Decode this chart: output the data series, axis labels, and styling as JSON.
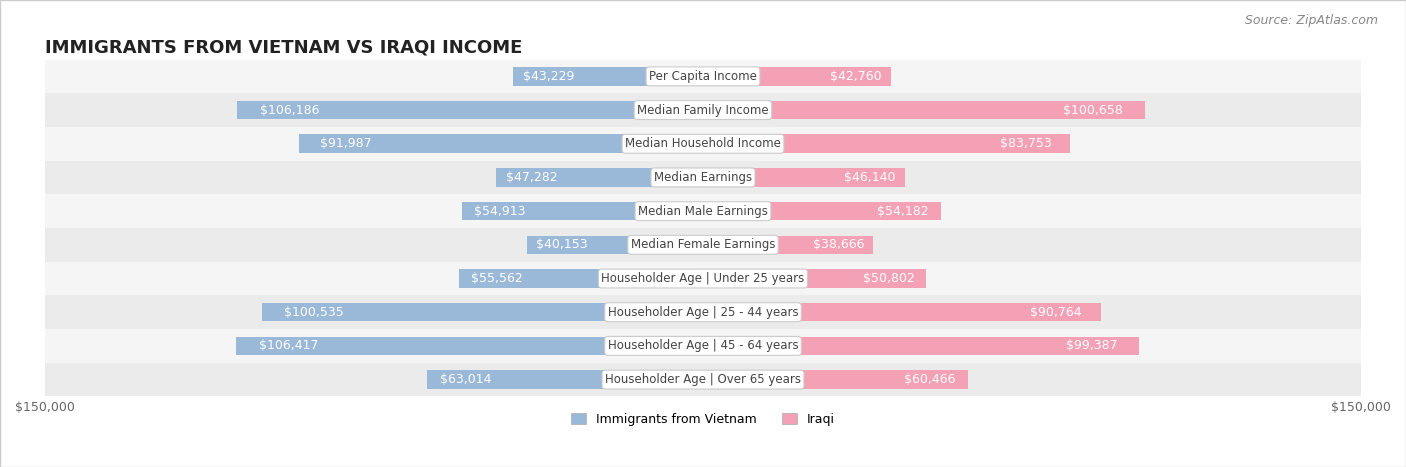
{
  "title": "IMMIGRANTS FROM VIETNAM VS IRAQI INCOME",
  "source": "Source: ZipAtlas.com",
  "categories": [
    "Per Capita Income",
    "Median Family Income",
    "Median Household Income",
    "Median Earnings",
    "Median Male Earnings",
    "Median Female Earnings",
    "Householder Age | Under 25 years",
    "Householder Age | 25 - 44 years",
    "Householder Age | 45 - 64 years",
    "Householder Age | Over 65 years"
  ],
  "vietnam_values": [
    43229,
    106186,
    91987,
    47282,
    54913,
    40153,
    55562,
    100535,
    106417,
    63014
  ],
  "iraqi_values": [
    42760,
    100658,
    83753,
    46140,
    54182,
    38666,
    50802,
    90764,
    99387,
    60466
  ],
  "max_value": 150000,
  "vietnam_color_bar": "#9ab8d8",
  "vietnam_color_bar_dark": "#6699cc",
  "iraqi_color_bar": "#f4a0b5",
  "iraqi_color_bar_dark": "#ee82a0",
  "label_box_color": "#ffffff",
  "label_box_edge": "#dddddd",
  "row_bg_light": "#f5f5f5",
  "row_bg_dark": "#ebebeb",
  "title_fontsize": 13,
  "source_fontsize": 9,
  "bar_label_fontsize": 9,
  "category_fontsize": 8.5,
  "axis_label_fontsize": 9,
  "legend_fontsize": 9,
  "bar_height": 0.55,
  "vietnam_label_color_inside": "#ffffff",
  "vietnam_label_color_outside": "#666666",
  "iraqi_label_color_inside": "#ffffff",
  "iraqi_label_color_outside": "#666666",
  "inside_threshold": 30000
}
